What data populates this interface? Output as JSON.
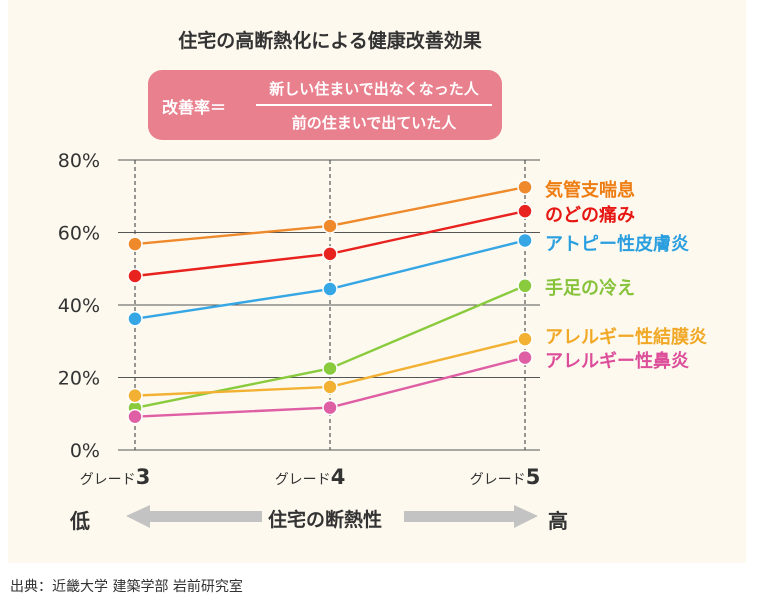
{
  "source": "出典：近畿大学 建築学部 岩前研究室",
  "formula": {
    "lhs": "改善率＝",
    "numerator": "新しい住まいで出なくなった人",
    "denominator": "前の住まいで出ていた人"
  },
  "x_axis_arrow": {
    "low": "低",
    "caption": "住宅の断熱性",
    "high": "高"
  },
  "chart_data": {
    "type": "line",
    "title": "住宅の高断熱化による健康改善効果",
    "categories": [
      "グレード3",
      "グレード4",
      "グレード5"
    ],
    "category_prefix": "グレード",
    "category_numbers": [
      "3",
      "4",
      "5"
    ],
    "ylim": [
      0,
      80
    ],
    "yticks": [
      "0%",
      "20%",
      "40%",
      "60%",
      "80%"
    ],
    "ytick_values": [
      0,
      20,
      40,
      60,
      80
    ],
    "grid": true,
    "legend": "right, end-of-line labels",
    "series": [
      {
        "name": "気管支喘息",
        "values": [
          56.8,
          61.8,
          72.5
        ],
        "color": "#ee8a2b",
        "label_color": "#ee7d13"
      },
      {
        "name": "のどの痛み",
        "values": [
          48.0,
          54.1,
          65.9
        ],
        "color": "#e8221e",
        "label_color": "#e61713"
      },
      {
        "name": "アトピー性皮膚炎",
        "values": [
          36.2,
          44.4,
          57.8
        ],
        "color": "#36a6e5",
        "label_color": "#2a9fe0"
      },
      {
        "name": "手足の冷え",
        "values": [
          11.6,
          22.5,
          45.3
        ],
        "color": "#8acb3e",
        "label_color": "#86c23a"
      },
      {
        "name": "アレルギー性結膜炎",
        "values": [
          15.0,
          17.4,
          30.6
        ],
        "color": "#f3b134",
        "label_color": "#f1a826"
      },
      {
        "name": "アレルギー性鼻炎",
        "values": [
          9.2,
          11.7,
          25.5
        ],
        "color": "#df5fa5",
        "label_color": "#dc4d9a"
      }
    ]
  }
}
